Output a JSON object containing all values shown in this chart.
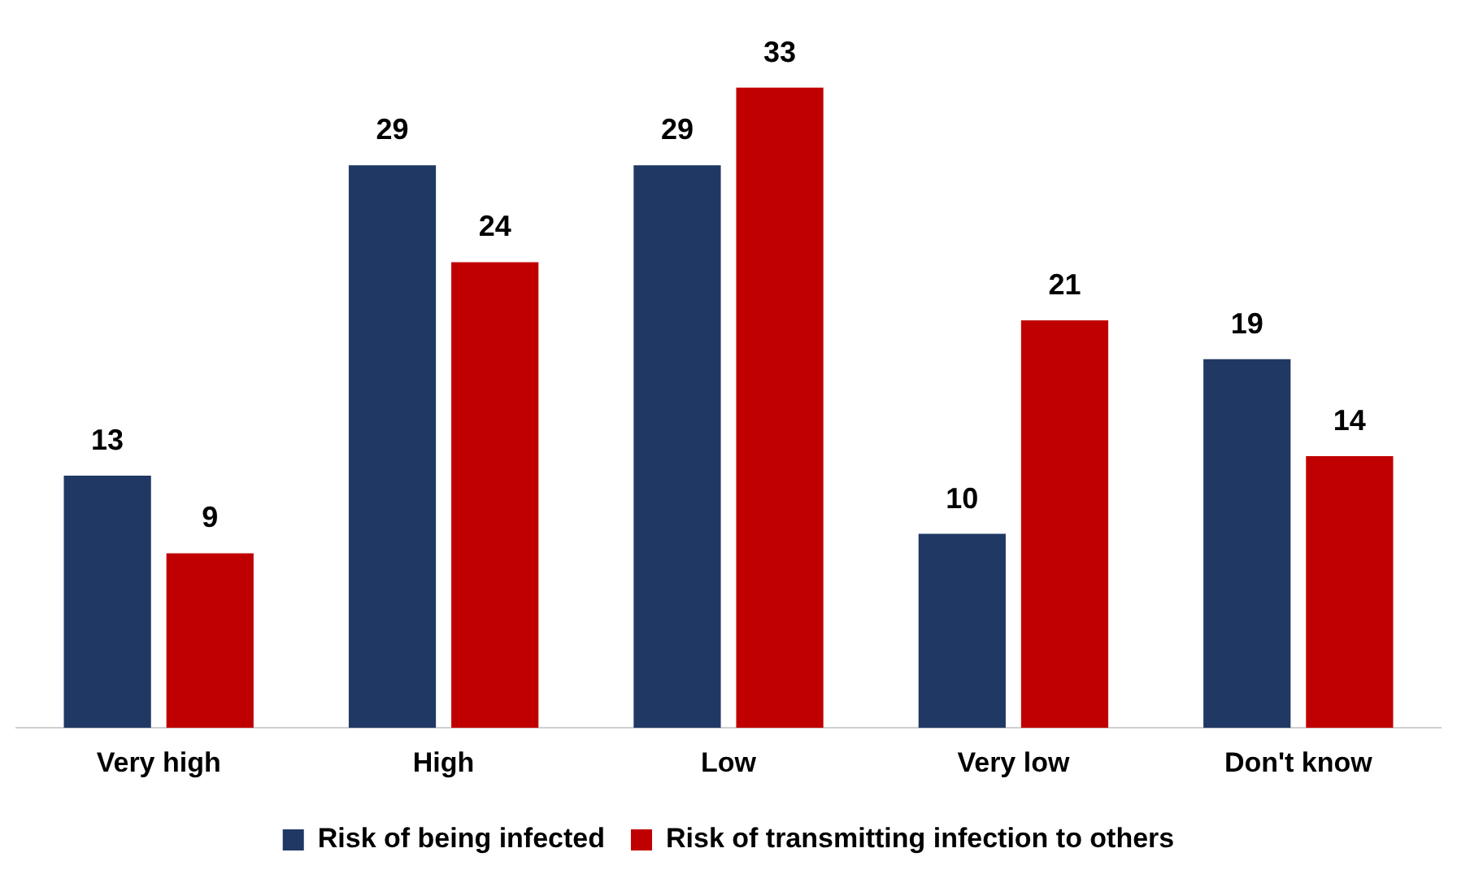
{
  "chart_data": {
    "type": "bar",
    "categories": [
      "Very high",
      "High",
      "Low",
      "Very low",
      "Don't know"
    ],
    "series": [
      {
        "name": "Risk of being infected",
        "color": "#203864",
        "values": [
          13,
          29,
          29,
          10,
          19
        ]
      },
      {
        "name": "Risk of transmitting infection to others",
        "color": "#c00000",
        "values": [
          9,
          24,
          33,
          21,
          14
        ]
      }
    ],
    "data_labels": true,
    "legend": "bottom",
    "grid": false
  }
}
